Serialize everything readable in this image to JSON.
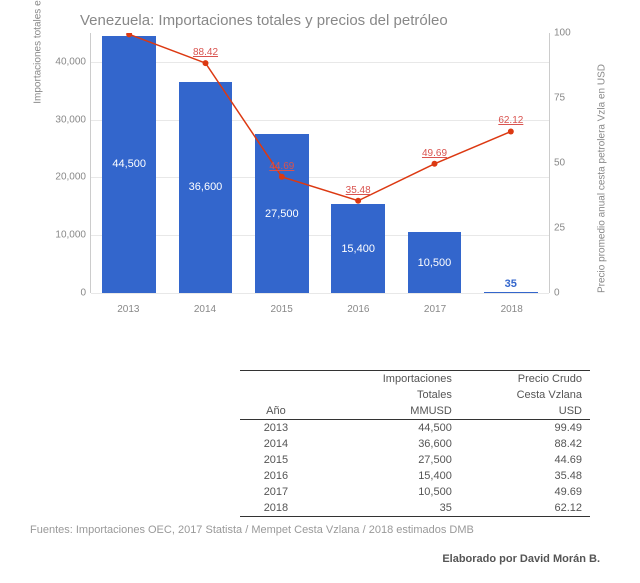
{
  "chart": {
    "title": "Venezuela: Importaciones totales y precios del petróleo",
    "type": "bar+line",
    "categories": [
      "2013",
      "2014",
      "2015",
      "2016",
      "2017",
      "2018"
    ],
    "bars": {
      "values": [
        44500,
        36600,
        27500,
        15400,
        10500,
        35
      ],
      "labels": [
        "44,500",
        "36,600",
        "27,500",
        "15,400",
        "10,500",
        "35"
      ],
      "color": "#3366cc",
      "ylim": [
        0,
        45000
      ],
      "yticks": [
        0,
        10000,
        20000,
        30000,
        40000
      ],
      "ytick_labels": [
        "0",
        "10,000",
        "20,000",
        "30,000",
        "40,000"
      ],
      "ylabel": "Importaciones totales en MMUSD"
    },
    "line": {
      "values": [
        99.49,
        88.42,
        44.69,
        35.48,
        49.69,
        62.12
      ],
      "labels": [
        "",
        "88.42",
        "44.69",
        "35.48",
        "49.69",
        "62.12"
      ],
      "color": "#dc3912",
      "ylim": [
        0,
        100
      ],
      "yticks": [
        0,
        25,
        50,
        75,
        100
      ],
      "ytick_labels": [
        "0",
        "25",
        "50",
        "75",
        "100"
      ],
      "ylabel": "Precio promedio anual cesta petrolera Vzla en USD"
    },
    "background_color": "#ffffff",
    "grid_color": "#e8e8e8",
    "axis_color": "#cccccc",
    "title_color": "#888888",
    "title_fontsize": 15,
    "tick_fontsize": 10
  },
  "table": {
    "header1": [
      "",
      "Importaciones",
      "Precio Crudo"
    ],
    "header2": [
      "",
      "Totales",
      "Cesta Vzlana"
    ],
    "header3": [
      "Año",
      "MMUSD",
      "USD"
    ],
    "rows": [
      [
        "2013",
        "44,500",
        "99.49"
      ],
      [
        "2014",
        "36,600",
        "88.42"
      ],
      [
        "2015",
        "27,500",
        "44.69"
      ],
      [
        "2016",
        "15,400",
        "35.48"
      ],
      [
        "2017",
        "10,500",
        "49.69"
      ],
      [
        "2018",
        "35",
        "62.12"
      ]
    ]
  },
  "sources": "Fuentes:  Importaciones OEC, 2017 Statista / Mempet Cesta Vzlana / 2018 estimados DMB",
  "credit": "Elaborado por David Morán B."
}
